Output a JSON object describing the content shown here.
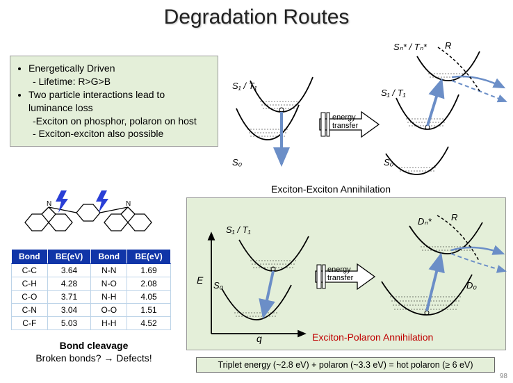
{
  "title": "Degradation Routes",
  "bullets": {
    "b1": "Energetically Driven",
    "b1s1": "- Lifetime: R>G>B",
    "b2": "Two particle interactions lead to luminance loss",
    "b2s1": "-Exciton on phosphor, polaron on host",
    "b2s2": "- Exciton-exciton also possible"
  },
  "labels": {
    "exciton_exciton": "Exciton-Exciton Annihilation",
    "exciton_polaron": "Exciton-Polaron Annihilation",
    "energy_transfer": "energy\ntransfer",
    "S0": "S₀",
    "S1T1": "S₁ / T₁",
    "SnTn": "Sₙ* / Tₙ*",
    "D0": "D₀",
    "Dn": "Dₙ*",
    "R": "R",
    "E": "E",
    "q": "q"
  },
  "equation": "Triplet energy (~2.8 eV) + polaron (~3.3 eV) = hot polaron (≥ 6 eV)",
  "bond_cleave": {
    "title": "Bond cleavage",
    "sub": "Broken bonds?  →  Defects!"
  },
  "table": {
    "headers": [
      "Bond",
      "BE(eV)",
      "Bond",
      "BE(eV)"
    ],
    "rows": [
      [
        "C-C",
        "3.64",
        "N-N",
        "1.69"
      ],
      [
        "C-H",
        "4.28",
        "N-O",
        "2.08"
      ],
      [
        "C-O",
        "3.71",
        "N-H",
        "4.05"
      ],
      [
        "C-N",
        "3.04",
        "O-O",
        "1.51"
      ],
      [
        "C-F",
        "5.03",
        "H-H",
        "4.52"
      ]
    ]
  },
  "colors": {
    "panel_bg": "#e4efd9",
    "table_header_bg": "#1035a8",
    "table_border": "#bcd3e8",
    "red": "#c00000",
    "curve": "#000000",
    "arrow_blue": "#6b8ec7",
    "bolt": "#2a3fd6"
  }
}
